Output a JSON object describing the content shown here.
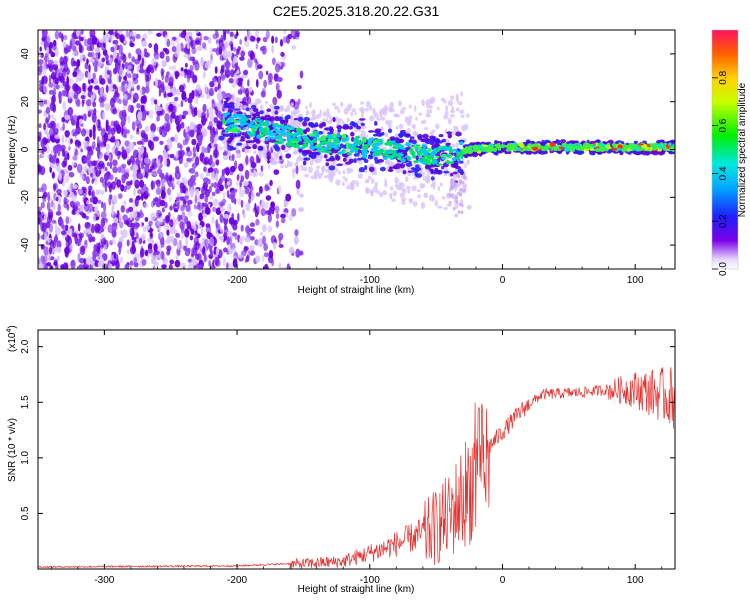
{
  "title": "C2E5.2025.318.20.22.G31",
  "colors": {
    "snr_line": "#e8302e",
    "purple": "#6a00e0",
    "light_purple": "#c9a8f5"
  },
  "chart_data": [
    {
      "type": "heatmap",
      "name": "spectrogram",
      "xlabel": "Height of straight line (km)",
      "ylabel": "Frequency (Hz)",
      "xlim": [
        -350,
        130
      ],
      "ylim": [
        -50,
        50
      ],
      "xticks": [
        -300,
        -200,
        -100,
        0,
        100
      ],
      "yticks": [
        -40,
        -20,
        0,
        20,
        40
      ],
      "colorbar": {
        "label": "Normalized spectral amplitude",
        "range": [
          0.0,
          1.0
        ],
        "ticks": [
          "0.0",
          "0.2",
          "0.4",
          "0.6",
          "0.8"
        ],
        "tick_values": [
          0.0,
          0.2,
          0.4,
          0.6,
          0.8
        ]
      },
      "signal_track": [
        {
          "x": -210,
          "y": 12
        },
        {
          "x": -180,
          "y": 8
        },
        {
          "x": -150,
          "y": 4
        },
        {
          "x": -120,
          "y": 2
        },
        {
          "x": -90,
          "y": 0
        },
        {
          "x": -60,
          "y": -2
        },
        {
          "x": -40,
          "y": -3
        },
        {
          "x": -25,
          "y": 0
        },
        {
          "x": 0,
          "y": 1
        },
        {
          "x": 50,
          "y": 1
        },
        {
          "x": 130,
          "y": 1
        }
      ]
    },
    {
      "type": "line",
      "name": "snr",
      "xlabel": "Height of straight line (km)",
      "ylabel": "SNR (10 * v/v)",
      "ymultiplier": "(x10",
      "ymultiplier_exp": "4",
      "ymultiplier_close": ")",
      "xlim": [
        -350,
        130
      ],
      "ylim": [
        0,
        2.15
      ],
      "xticks": [
        -300,
        -200,
        -100,
        0,
        100
      ],
      "yticks": [
        0.5,
        1.0,
        1.5,
        2.0
      ],
      "ytick_labels": [
        "0.5",
        "1.0",
        "1.5",
        "2.0"
      ],
      "envelope": [
        {
          "x": -350,
          "y": 0.02
        },
        {
          "x": -200,
          "y": 0.03
        },
        {
          "x": -160,
          "y": 0.05
        },
        {
          "x": -120,
          "y": 0.08
        },
        {
          "x": -90,
          "y": 0.2
        },
        {
          "x": -60,
          "y": 0.35
        },
        {
          "x": -40,
          "y": 0.55
        },
        {
          "x": -25,
          "y": 0.85
        },
        {
          "x": -15,
          "y": 1.05
        },
        {
          "x": 0,
          "y": 1.25
        },
        {
          "x": 15,
          "y": 1.45
        },
        {
          "x": 30,
          "y": 1.58
        },
        {
          "x": 60,
          "y": 1.6
        },
        {
          "x": 100,
          "y": 1.65
        },
        {
          "x": 130,
          "y": 1.6
        }
      ]
    }
  ]
}
